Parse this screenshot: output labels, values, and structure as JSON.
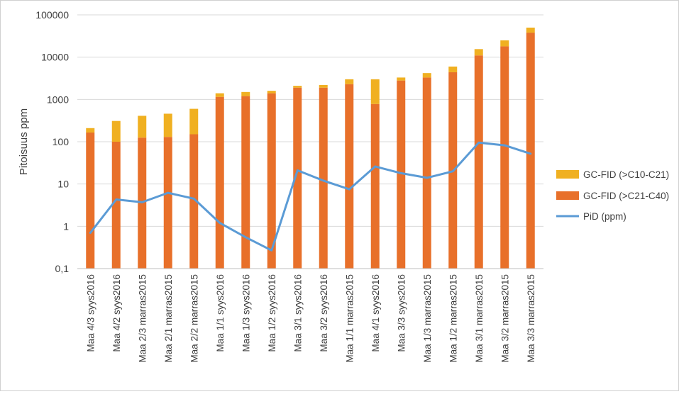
{
  "chart_data": {
    "type": "bar",
    "stacked": true,
    "yscale": "log",
    "ylabel": "Pitoisuus ppm",
    "ylim": [
      0.1,
      100000
    ],
    "yticks": [
      0.1,
      1,
      10,
      100,
      1000,
      10000,
      100000
    ],
    "ytick_labels": [
      "0,1",
      "1",
      "10",
      "100",
      "1000",
      "10000",
      "100000"
    ],
    "grid": true,
    "legend_position": "right",
    "categories": [
      "Maa 4/3 syys2016",
      "Maa 4/2 syys2016",
      "Maa 2/3 marras2015",
      "Maa 2/1 marras2015",
      "Maa 2/2 marras2015",
      "Maa 1/1 syys2016",
      "Maa 1/3 syys2016",
      "Maa 1/2 syys2016",
      "Maa 3/1 syys2016",
      "Maa 3/2 syys2016",
      "Maa 1/1 marras2015",
      "Maa 4/1 syys2016",
      "Maa 3/3 syys2016",
      "Maa 1/3 marras2015",
      "Maa 1/2 marras2015",
      "Maa 3/1 marras2015",
      "Maa 3/2 marras2015",
      "Maa 3/3 marras2015"
    ],
    "series": [
      {
        "name": "GC-FID (>C21-C40)",
        "kind": "bar",
        "color": "#E8702A",
        "values": [
          165,
          100,
          125,
          130,
          150,
          1150,
          1200,
          1400,
          1900,
          1900,
          2300,
          780,
          2800,
          3300,
          4400,
          11000,
          18000,
          38000
        ]
      },
      {
        "name": "GC-FID (>C10-C21)",
        "kind": "bar",
        "color": "#F0B021",
        "values": [
          45,
          210,
          285,
          330,
          450,
          250,
          300,
          200,
          200,
          300,
          700,
          2220,
          500,
          900,
          1600,
          4500,
          7000,
          12000
        ]
      },
      {
        "name": "PiD (ppm)",
        "kind": "line",
        "color": "#5B9BD5",
        "values": [
          0.7,
          4.3,
          3.7,
          6.2,
          4.5,
          1.2,
          0.55,
          0.27,
          21,
          12,
          7.5,
          26,
          18,
          14,
          20,
          95,
          82,
          52
        ]
      }
    ],
    "legend": [
      {
        "label": "GC-FID (>C10-C21)",
        "color": "#F0B021",
        "kind": "bar"
      },
      {
        "label": "GC-FID (>C21-C40)",
        "color": "#E8702A",
        "kind": "bar"
      },
      {
        "label": "PiD (ppm)",
        "color": "#5B9BD5",
        "kind": "line"
      }
    ]
  }
}
